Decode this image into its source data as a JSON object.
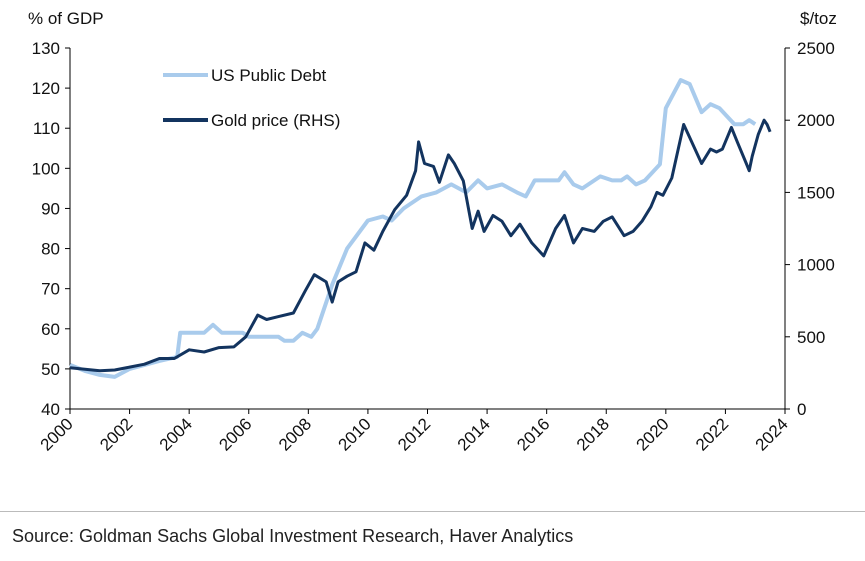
{
  "chart_data": {
    "type": "line",
    "ylabel_left": "% of GDP",
    "ylabel_right": "$/toz",
    "xlim": [
      2000,
      2024
    ],
    "ylim_left": [
      40,
      130
    ],
    "ylim_right": [
      0,
      2500
    ],
    "xticks": [
      "2000",
      "2002",
      "2004",
      "2006",
      "2008",
      "2010",
      "2012",
      "2014",
      "2016",
      "2018",
      "2020",
      "2022",
      "2024"
    ],
    "yticks_left": [
      "40",
      "50",
      "60",
      "70",
      "80",
      "90",
      "100",
      "110",
      "120",
      "130"
    ],
    "yticks_right": [
      "0",
      "500",
      "1000",
      "1500",
      "2000",
      "2500"
    ],
    "grid": false,
    "legend_position": "top-left",
    "series": [
      {
        "name": "US Public Debt",
        "axis": "left",
        "color": "#a9cbec",
        "x": [
          2000,
          2000.5,
          2001,
          2001.5,
          2002,
          2003,
          2003.6,
          2003.7,
          2004.5,
          2004.8,
          2005.1,
          2005.8,
          2006,
          2007,
          2007.2,
          2007.5,
          2007.8,
          2008.1,
          2008.3,
          2008.8,
          2009.3,
          2010,
          2010.5,
          2010.8,
          2011.2,
          2011.8,
          2012.3,
          2012.8,
          2013.3,
          2013.7,
          2014,
          2014.5,
          2015,
          2015.3,
          2015.6,
          2016.4,
          2016.6,
          2016.9,
          2017.2,
          2017.8,
          2018.2,
          2018.5,
          2018.7,
          2019,
          2019.3,
          2019.8,
          2020,
          2020.5,
          2020.8,
          2021.2,
          2021.5,
          2021.8,
          2022.3,
          2022.6,
          2022.8,
          2023
        ],
        "values": [
          51,
          49.5,
          48.5,
          48,
          50,
          52,
          53,
          59,
          59,
          61,
          59,
          59,
          58,
          58,
          57,
          57,
          59,
          58,
          60,
          71,
          80,
          87,
          88,
          87,
          90,
          93,
          94,
          96,
          94,
          97,
          95,
          96,
          94,
          93,
          97,
          97,
          99,
          96,
          95,
          98,
          97,
          97,
          98,
          96,
          97,
          101,
          115,
          122,
          121,
          114,
          116,
          115,
          111,
          111,
          112,
          111
        ]
      },
      {
        "name": "Gold price (RHS)",
        "axis": "right",
        "color": "#13345f",
        "x": [
          2000,
          2001,
          2001.5,
          2002,
          2002.5,
          2003,
          2003.5,
          2004,
          2004.5,
          2005,
          2005.5,
          2005.9,
          2006.3,
          2006.6,
          2007,
          2007.5,
          2007.9,
          2008.2,
          2008.6,
          2008.8,
          2009,
          2009.3,
          2009.6,
          2009.9,
          2010.2,
          2010.5,
          2010.9,
          2011.3,
          2011.6,
          2011.7,
          2011.9,
          2012.2,
          2012.4,
          2012.7,
          2012.9,
          2013.2,
          2013.5,
          2013.7,
          2013.9,
          2014.2,
          2014.5,
          2014.8,
          2015.1,
          2015.5,
          2015.9,
          2016.3,
          2016.6,
          2016.9,
          2017.2,
          2017.6,
          2017.9,
          2018.2,
          2018.6,
          2018.9,
          2019.2,
          2019.5,
          2019.7,
          2019.9,
          2020.2,
          2020.6,
          2020.8,
          2021.2,
          2021.5,
          2021.7,
          2021.9,
          2022.2,
          2022.4,
          2022.7,
          2022.8,
          2022.9,
          2023.1,
          2023.3,
          2023.4,
          2023.5
        ],
        "values": [
          285,
          265,
          270,
          290,
          310,
          350,
          350,
          410,
          395,
          425,
          430,
          500,
          650,
          620,
          640,
          665,
          820,
          930,
          880,
          740,
          880,
          920,
          950,
          1150,
          1100,
          1230,
          1380,
          1480,
          1650,
          1850,
          1700,
          1680,
          1570,
          1760,
          1700,
          1580,
          1250,
          1370,
          1230,
          1340,
          1300,
          1200,
          1280,
          1150,
          1060,
          1250,
          1340,
          1150,
          1250,
          1230,
          1300,
          1330,
          1200,
          1230,
          1300,
          1400,
          1500,
          1480,
          1600,
          1970,
          1880,
          1700,
          1800,
          1780,
          1800,
          1950,
          1850,
          1700,
          1650,
          1750,
          1900,
          2000,
          1970,
          1920
        ]
      }
    ]
  },
  "source": "Source: Goldman Sachs Global Investment Research, Haver Analytics"
}
